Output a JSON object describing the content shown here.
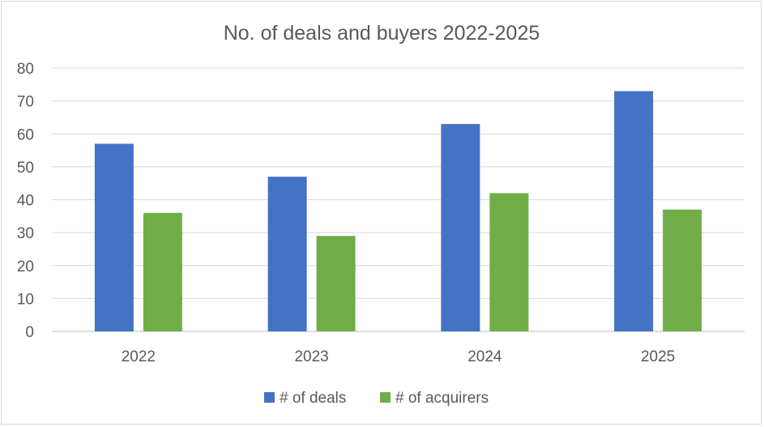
{
  "chart_data": {
    "type": "bar",
    "title": "No. of deals and buyers 2022-2025",
    "categories": [
      "2022",
      "2023",
      "2024",
      "2025"
    ],
    "series": [
      {
        "name": "# of deals",
        "values": [
          57,
          47,
          63,
          73
        ],
        "color": "#4472C4"
      },
      {
        "name": "# of acquirers",
        "values": [
          36,
          29,
          42,
          37
        ],
        "color": "#70AD47"
      }
    ],
    "xlabel": "",
    "ylabel": "",
    "ylim": [
      0,
      80
    ],
    "yticks": [
      0,
      10,
      20,
      30,
      40,
      50,
      60,
      70,
      80
    ],
    "grid": true,
    "legend_position": "bottom"
  }
}
